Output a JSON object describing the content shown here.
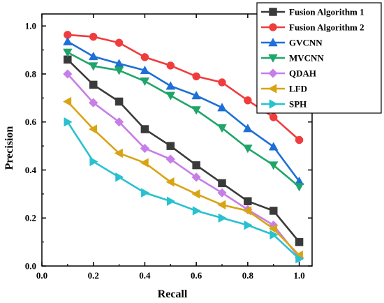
{
  "chart_data": {
    "type": "line",
    "title": "",
    "xlabel": "Recall",
    "ylabel": "Precision",
    "xlim": [
      0.0,
      1.05
    ],
    "ylim": [
      0.0,
      1.05
    ],
    "xticks": [
      "0.0",
      "0.2",
      "0.4",
      "0.6",
      "0.8",
      "1.0"
    ],
    "yticks": [
      "0.0",
      "0.2",
      "0.4",
      "0.6",
      "0.8",
      "1.0"
    ],
    "grid": false,
    "legend_position": "top-right",
    "x": [
      0.1,
      0.2,
      0.3,
      0.4,
      0.5,
      0.6,
      0.7,
      0.8,
      0.9,
      1.0
    ],
    "series": [
      {
        "name": "Fusion Algorithm 1",
        "color": "#3a3a3a",
        "marker": "square",
        "values": [
          0.86,
          0.755,
          0.685,
          0.57,
          0.5,
          0.42,
          0.345,
          0.27,
          0.23,
          0.1
        ]
      },
      {
        "name": "Fusion Algorithm 2",
        "color": "#f03c3c",
        "marker": "circle",
        "values": [
          0.963,
          0.955,
          0.93,
          0.87,
          0.835,
          0.79,
          0.765,
          0.69,
          0.62,
          0.525
        ]
      },
      {
        "name": "GVCNN",
        "color": "#1e6fd6",
        "marker": "triangle-up",
        "values": [
          0.935,
          0.873,
          0.843,
          0.815,
          0.75,
          0.71,
          0.66,
          0.573,
          0.497,
          0.353
        ]
      },
      {
        "name": "MVCNN",
        "color": "#1fa56a",
        "marker": "triangle-down",
        "values": [
          0.89,
          0.833,
          0.815,
          0.77,
          0.71,
          0.65,
          0.575,
          0.49,
          0.42,
          0.33
        ]
      },
      {
        "name": "QDAH",
        "color": "#c77ee6",
        "marker": "diamond",
        "values": [
          0.8,
          0.68,
          0.6,
          0.49,
          0.445,
          0.37,
          0.305,
          0.235,
          0.17,
          0.035
        ]
      },
      {
        "name": "LFD",
        "color": "#d9a414",
        "marker": "triangle-left",
        "values": [
          0.685,
          0.57,
          0.47,
          0.43,
          0.35,
          0.3,
          0.255,
          0.23,
          0.155,
          0.045
        ]
      },
      {
        "name": "SPH",
        "color": "#29c1cf",
        "marker": "triangle-right",
        "values": [
          0.6,
          0.435,
          0.37,
          0.305,
          0.27,
          0.23,
          0.2,
          0.17,
          0.13,
          0.03
        ]
      }
    ]
  }
}
